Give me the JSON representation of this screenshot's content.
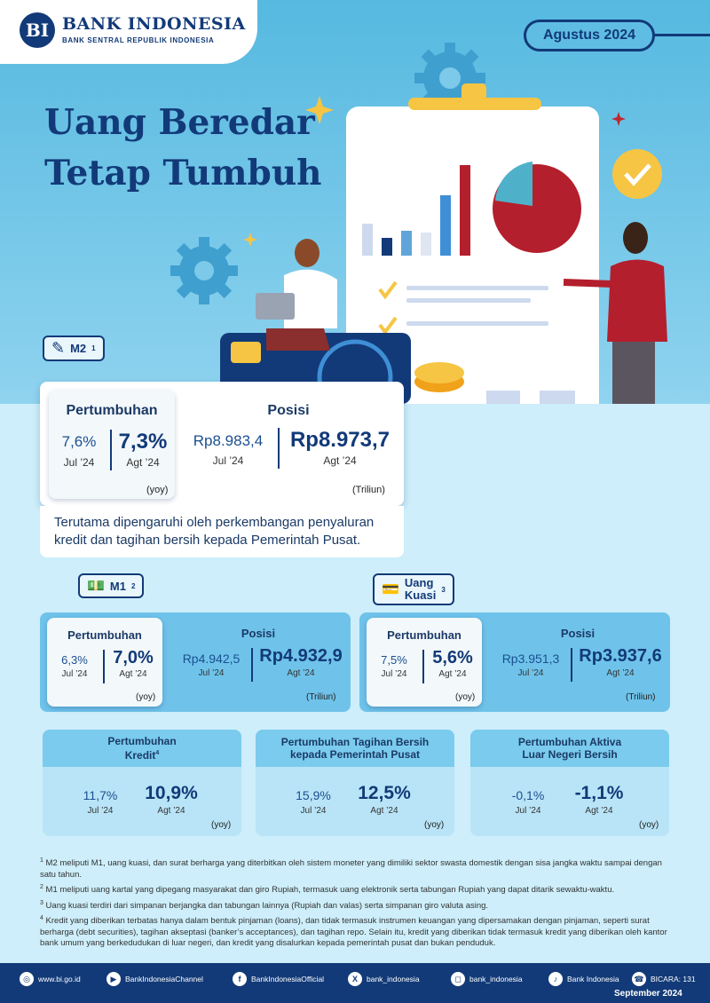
{
  "header": {
    "logo_mark": "BI",
    "bank_name": "BANK INDONESIA",
    "bank_subtitle": "BANK SENTRAL REPUBLIK INDONESIA",
    "period": "Agustus 2024"
  },
  "title": {
    "line1": "Uang Beredar",
    "line2": "Tetap Tumbuh"
  },
  "m2": {
    "tag": "M2",
    "tag_sup": "1",
    "growth_header": "Pertumbuhan",
    "growth_prev_value": "7,6%",
    "growth_prev_period": "Jul ’24",
    "growth_curr_value": "7,3%",
    "growth_curr_period": "Agt ’24",
    "growth_unit": "(yoy)",
    "position_header": "Posisi",
    "position_prev_value": "Rp8.983,4",
    "position_prev_period": "Jul ’24",
    "position_curr_value": "Rp8.973,7",
    "position_curr_period": "Agt ’24",
    "position_unit": "(Triliun)",
    "note": "Terutama dipengaruhi oleh perkembangan penyaluran kredit dan tagihan bersih kepada Pemerintah Pusat."
  },
  "m1": {
    "tag": "M1",
    "tag_sup": "2",
    "growth_header": "Pertumbuhan",
    "growth_prev_value": "6,3%",
    "growth_prev_period": "Jul ’24",
    "growth_curr_value": "7,0%",
    "growth_curr_period": "Agt ’24",
    "growth_unit": "(yoy)",
    "position_header": "Posisi",
    "position_prev_value": "Rp4.942,5",
    "position_prev_period": "Jul ’24",
    "position_curr_value": "Rp4.932,9",
    "position_curr_period": "Agt ’24",
    "position_unit": "(Triliun)"
  },
  "quasi": {
    "tag_line1": "Uang",
    "tag_line2": "Kuasi",
    "tag_sup": "3",
    "growth_header": "Pertumbuhan",
    "growth_prev_value": "7,5%",
    "growth_prev_period": "Jul ’24",
    "growth_curr_value": "5,6%",
    "growth_curr_period": "Agt ’24",
    "growth_unit": "(yoy)",
    "position_header": "Posisi",
    "position_prev_value": "Rp3.951,3",
    "position_prev_period": "Jul ’24",
    "position_curr_value": "Rp3.937,6",
    "position_curr_period": "Agt ’24",
    "position_unit": "(Triliun)"
  },
  "small_cards": [
    {
      "title_line1": "Pertumbuhan",
      "title_line2": "Kredit",
      "title_sup": "4",
      "prev_value": "11,7%",
      "prev_period": "Jul ’24",
      "curr_value": "10,9%",
      "curr_period": "Agt ’24",
      "unit": "(yoy)"
    },
    {
      "title_line1": "Pertumbuhan Tagihan Bersih",
      "title_line2": "kepada Pemerintah Pusat",
      "title_sup": "",
      "prev_value": "15,9%",
      "prev_period": "Jul ’24",
      "curr_value": "12,5%",
      "curr_period": "Agt ’24",
      "unit": "(yoy)"
    },
    {
      "title_line1": "Pertumbuhan Aktiva",
      "title_line2": "Luar Negeri Bersih",
      "title_sup": "",
      "prev_value": "-0,1%",
      "prev_period": "Jul ’24",
      "curr_value": "-1,1%",
      "curr_period": "Agt ’24",
      "unit": "(yoy)"
    }
  ],
  "footnotes": [
    {
      "num": "1",
      "text": "M2 meliputi M1, uang kuasi, dan surat berharga yang diterbitkan oleh sistem moneter yang dimiliki sektor swasta domestik dengan sisa jangka waktu sampai dengan satu tahun."
    },
    {
      "num": "2",
      "text": "M1 meliputi uang kartal yang dipegang masyarakat dan giro Rupiah, termasuk uang elektronik serta tabungan Rupiah yang dapat ditarik sewaktu-waktu."
    },
    {
      "num": "3",
      "text": "Uang kuasi terdiri dari simpanan berjangka dan tabungan lainnya (Rupiah dan valas) serta simpanan giro valuta asing."
    },
    {
      "num": "4",
      "text": "Kredit yang diberikan terbatas hanya dalam bentuk pinjaman (loans), dan tidak termasuk instrumen keuangan yang dipersamakan dengan pinjaman, seperti surat berharga (debt securities), tagihan akseptasi (banker’s acceptances), dan tagihan repo. Selain itu, kredit yang diberikan tidak termasuk kredit yang diberikan oleh kantor bank umum yang berkedudukan di luar negeri, dan kredit yang disalurkan kepada pemerintah pusat dan bukan penduduk."
    }
  ],
  "footer": {
    "website": "www.bi.go.id",
    "youtube": "BankIndonesiaChannel",
    "facebook": "BankIndonesiaOfficial",
    "x": "bank_indonesia",
    "instagram": "bank_indonesia",
    "tiktok": "Bank Indonesia",
    "bicara": "BICARA: 131",
    "date": "September 2024"
  }
}
